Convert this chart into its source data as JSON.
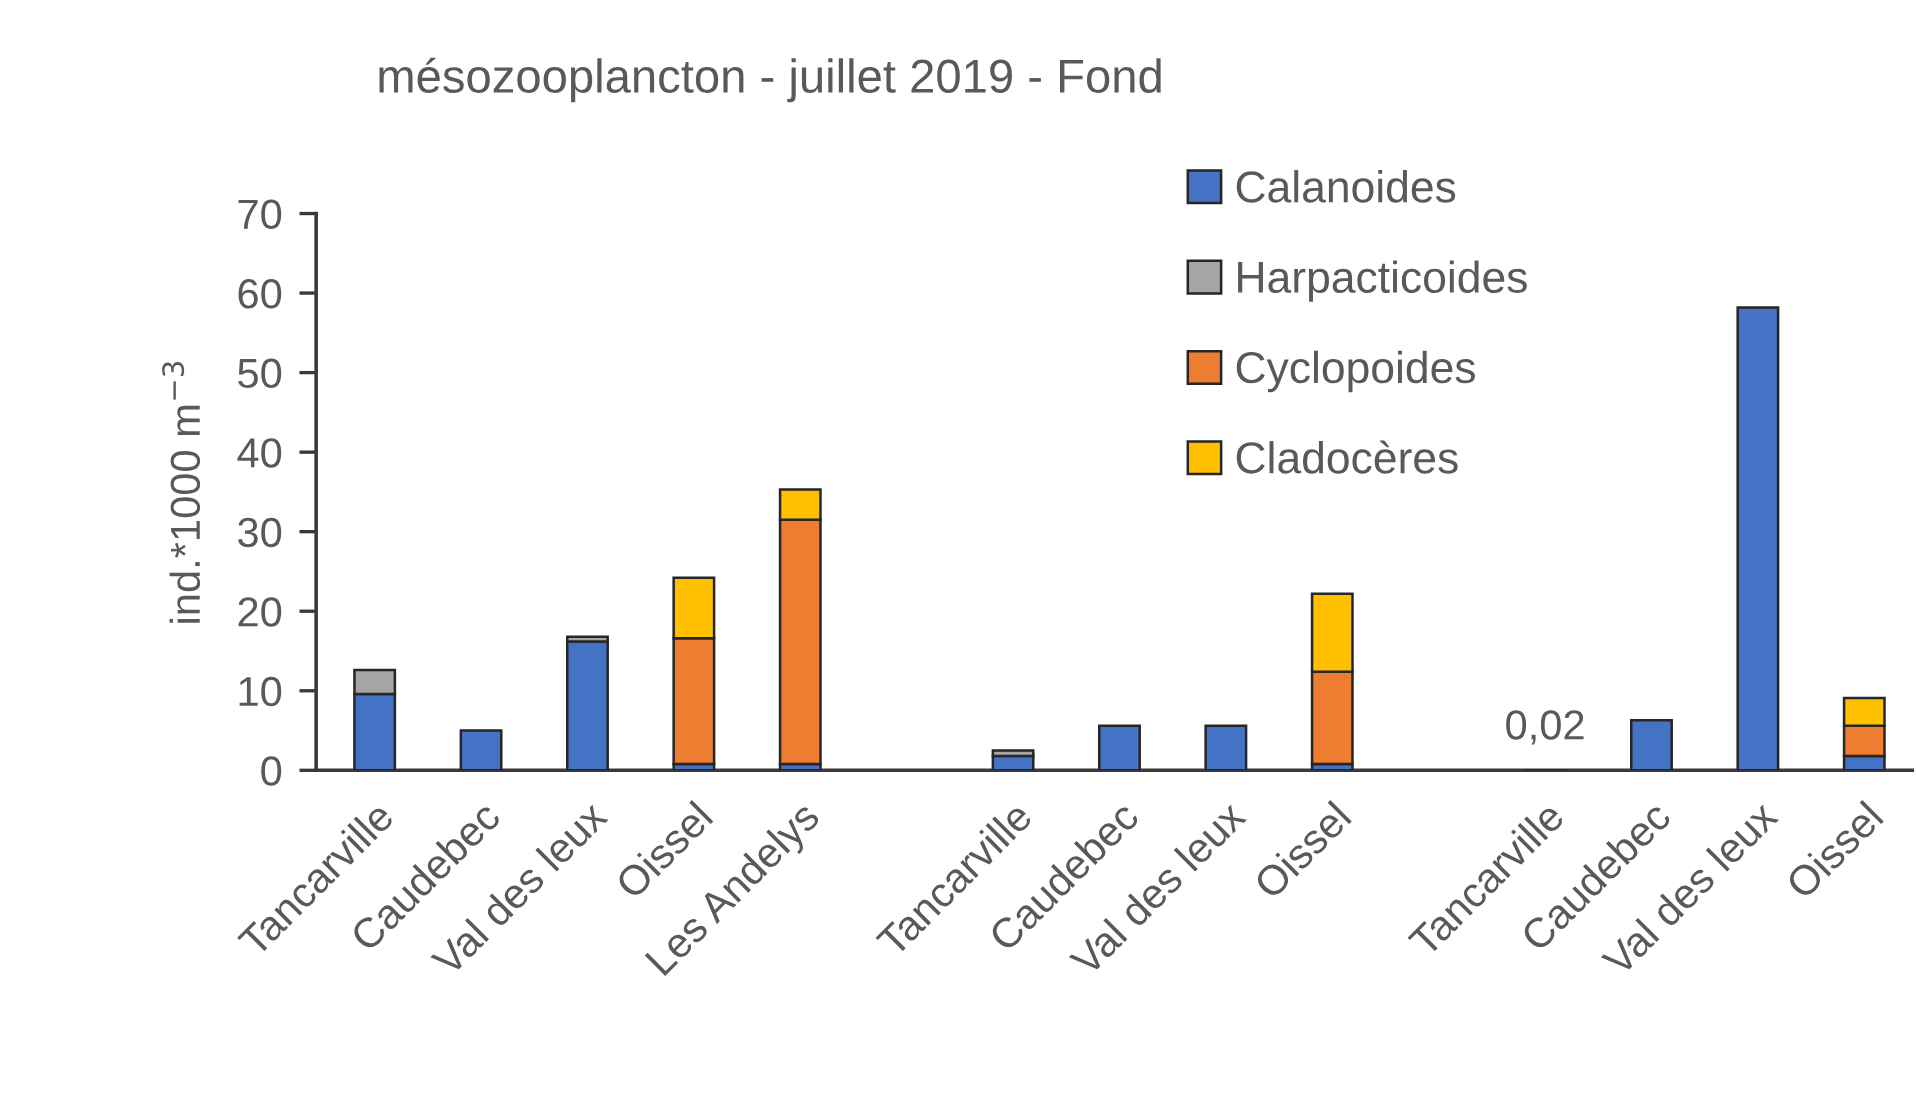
{
  "chart_data": {
    "type": "bar",
    "stacked": true,
    "title": "mésozooplancton - juillet 2019 - Fond",
    "ylabel": "ind.*1000 m$^{−3}$",
    "categories": [
      "Tancarville",
      "Caudebec",
      "Val des leux",
      "Oissel",
      "Les Andelys",
      null,
      "Tancarville",
      "Caudebec",
      "Val des leux",
      "Oissel",
      null,
      "Tancarville",
      "Caudebec",
      "Val des leux",
      "Oissel"
    ],
    "series": [
      {
        "name": "Calanoides",
        "color": "#4472c4",
        "values": [
          9.6,
          5.0,
          16.2,
          0.8,
          0.8,
          null,
          1.8,
          5.6,
          5.6,
          0.8,
          null,
          0.02,
          6.3,
          58.2,
          1.8
        ],
        "value_labels": [
          null,
          null,
          null,
          null,
          null,
          null,
          null,
          null,
          null,
          null,
          null,
          "0,02",
          null,
          null,
          null
        ]
      },
      {
        "name": "Harpacticoides",
        "color": "#a5a5a5",
        "values": [
          3.0,
          null,
          0.6,
          null,
          null,
          null,
          0.7,
          null,
          null,
          null,
          null,
          null,
          null,
          null,
          null
        ]
      },
      {
        "name": "Cyclopoides",
        "color": "#ed7d31",
        "values": [
          null,
          null,
          null,
          15.8,
          30.7,
          null,
          null,
          null,
          null,
          11.6,
          null,
          null,
          null,
          null,
          3.8
        ]
      },
      {
        "name": "Cladocères",
        "color": "#ffc000",
        "values": [
          null,
          null,
          null,
          7.6,
          3.8,
          null,
          null,
          null,
          null,
          9.8,
          null,
          null,
          null,
          null,
          3.5
        ]
      }
    ],
    "ylim": [
      0,
      70
    ],
    "yticks": [
      0,
      10,
      20,
      30,
      40,
      50,
      60,
      70
    ],
    "legend": "top right"
  }
}
